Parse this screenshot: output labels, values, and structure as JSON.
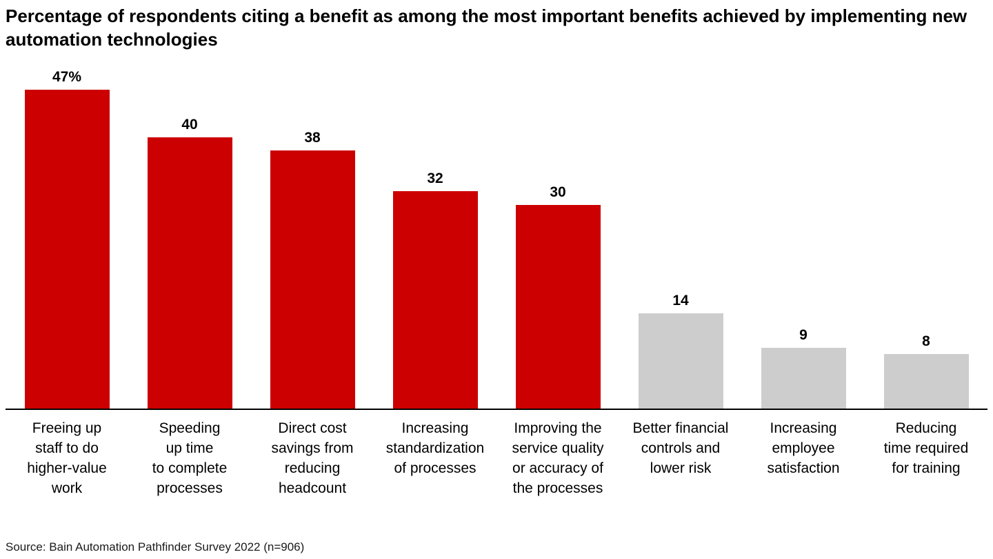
{
  "chart_data": {
    "type": "bar",
    "title": "Percentage of respondents citing a benefit as among the most important benefits achieved by implementing new automation technologies",
    "categories": [
      "Freeing up\nstaff to do\nhigher-value\nwork",
      "Speeding\nup time\nto complete\nprocesses",
      "Direct cost\nsavings from\nreducing\nheadcount",
      "Increasing\nstandardization\nof processes",
      "Improving the\nservice quality\nor accuracy of\nthe processes",
      "Better financial\ncontrols and\nlower risk",
      "Increasing\nemployee\nsatisfaction",
      "Reducing\ntime required\nfor training"
    ],
    "values": [
      47,
      40,
      38,
      32,
      30,
      14,
      9,
      8
    ],
    "value_labels": [
      "47%",
      "40",
      "38",
      "32",
      "30",
      "14",
      "9",
      "8"
    ],
    "bar_colors": [
      "#CC0000",
      "#CC0000",
      "#CC0000",
      "#CC0000",
      "#CC0000",
      "#CDCDCD",
      "#CDCDCD",
      "#CDCDCD"
    ],
    "highlight_color": "#CC0000",
    "muted_color": "#CDCDCD",
    "axis_color": "#000000",
    "ylim": [
      0,
      47
    ],
    "grid": false,
    "legend": false,
    "source": "Source: Bain Automation Pathfinder Survey 2022 (n=906)"
  }
}
